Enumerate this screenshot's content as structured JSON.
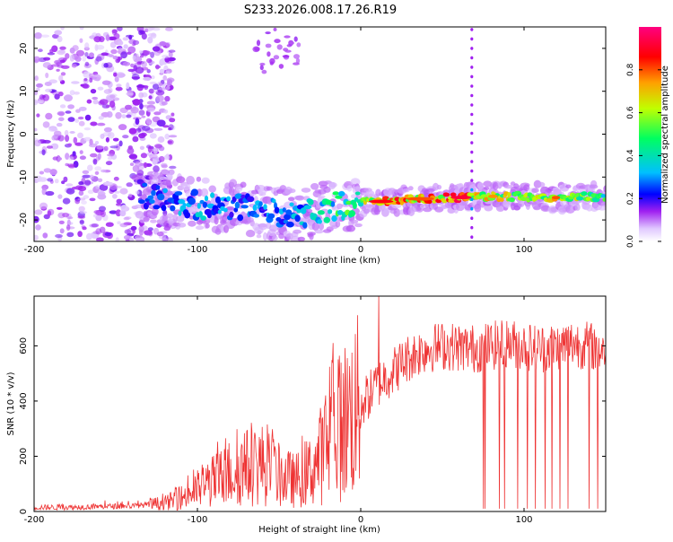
{
  "title": "S233.2026.008.17.26.R19",
  "chart_data": [
    {
      "type": "heatmap",
      "xlabel": "Height of straight line (km)",
      "ylabel": "Frequency (Hz)",
      "xlim": [
        -200,
        150
      ],
      "ylim": [
        -25,
        25
      ],
      "xticks": [
        -200,
        -100,
        0,
        100
      ],
      "yticks": [
        -20,
        -10,
        0,
        10,
        20
      ],
      "colorbar": {
        "label": "Normalized spectral amplitude",
        "range": [
          0,
          1
        ],
        "ticks": [
          0.0,
          0.2,
          0.4,
          0.6,
          0.8
        ],
        "tick_labels": [
          "0.0",
          "0.2",
          "0.4",
          "0.6",
          "0.8"
        ],
        "colors": [
          "#ffffff",
          "#a020f0",
          "#0000ff",
          "#00c0ff",
          "#00ff60",
          "#c0ff00",
          "#ffa000",
          "#ff0000",
          "#ff0080"
        ]
      },
      "ridge": {
        "x": [
          -135,
          -120,
          -100,
          -80,
          -60,
          -40,
          -20,
          0,
          20,
          40,
          60,
          80,
          100,
          120,
          150
        ],
        "frequency": [
          -14,
          -15,
          -16.5,
          -17,
          -18,
          -19,
          -17,
          -16,
          -15.5,
          -15,
          -14.8,
          -14.5,
          -14.5,
          -14.8,
          -14.5
        ],
        "amplitude": [
          0.25,
          0.3,
          0.35,
          0.3,
          0.3,
          0.35,
          0.45,
          0.6,
          0.85,
          0.8,
          0.9,
          0.75,
          0.6,
          0.7,
          0.5
        ]
      },
      "noise_region": {
        "x_start": -200,
        "x_end": -135,
        "amplitude": 0.05
      },
      "artifacts": [
        {
          "x": 68,
          "description": "vertical dotted line"
        }
      ]
    },
    {
      "type": "line",
      "xlabel": "Height of straight line (km)",
      "ylabel": "SNR (10 * v/v)",
      "xlim": [
        -200,
        150
      ],
      "ylim": [
        0,
        780
      ],
      "xticks": [
        -200,
        -100,
        0,
        100
      ],
      "yticks": [
        0,
        200,
        400,
        600
      ],
      "series": [
        {
          "name": "SNR",
          "color": "#ee3333",
          "x": [
            -200,
            -180,
            -160,
            -140,
            -120,
            -110,
            -100,
            -90,
            -80,
            -70,
            -60,
            -50,
            -40,
            -30,
            -25,
            -20,
            -15,
            -10,
            -5,
            0,
            5,
            10,
            20,
            30,
            40,
            50,
            60,
            70,
            80,
            90,
            100,
            110,
            120,
            130,
            140,
            150
          ],
          "values": [
            15,
            15,
            18,
            20,
            30,
            50,
            80,
            110,
            140,
            160,
            170,
            130,
            110,
            150,
            200,
            240,
            290,
            330,
            360,
            390,
            420,
            460,
            510,
            560,
            590,
            600,
            595,
            590,
            600,
            610,
            600,
            590,
            600,
            610,
            600,
            590
          ]
        }
      ],
      "spikes": [
        {
          "x": 11,
          "value": 780,
          "direction": "up"
        },
        {
          "x": -17,
          "value": 610,
          "direction": "up"
        },
        {
          "x": 75,
          "value": 10,
          "direction": "down"
        },
        {
          "x": 76,
          "value": 10,
          "direction": "down"
        },
        {
          "x": 85,
          "value": 10,
          "direction": "down"
        },
        {
          "x": 88,
          "value": 10,
          "direction": "down"
        },
        {
          "x": 96,
          "value": 10,
          "direction": "down"
        },
        {
          "x": 102,
          "value": 10,
          "direction": "down"
        },
        {
          "x": 107,
          "value": 10,
          "direction": "down"
        },
        {
          "x": 113,
          "value": 10,
          "direction": "down"
        },
        {
          "x": 117,
          "value": 10,
          "direction": "down"
        },
        {
          "x": 122,
          "value": 10,
          "direction": "down"
        },
        {
          "x": 127,
          "value": 10,
          "direction": "down"
        },
        {
          "x": 140,
          "value": 10,
          "direction": "down"
        },
        {
          "x": 145,
          "value": 10,
          "direction": "down"
        }
      ]
    }
  ]
}
